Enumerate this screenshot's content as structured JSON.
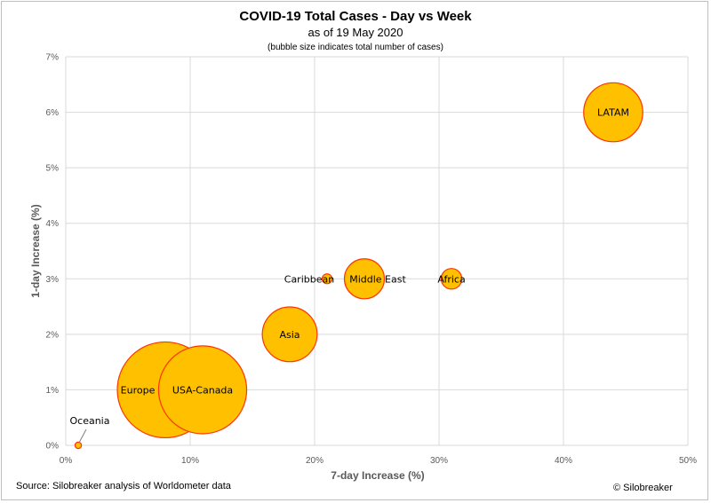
{
  "header": {
    "title": "COVID-19 Total Cases - Day vs Week",
    "subtitle": "as of 19 May 2020",
    "note": "(bubble size indicates total number of cases)"
  },
  "footer": {
    "source": "Source: Silobreaker analysis of Worldometer data",
    "copyright": "© Silobreaker"
  },
  "colors": {
    "bubble_fill": "#ffc000",
    "bubble_stroke": "#ff3300",
    "grid": "#d9d9d9"
  },
  "chart_data": {
    "type": "scatter",
    "subtype": "bubble",
    "title": "COVID-19 Total Cases - Day vs Week",
    "subtitle": "as of 19 May 2020",
    "xlabel": "7-day Increase (%)",
    "ylabel": "1-day Increase (%)",
    "xlim": [
      0,
      50
    ],
    "ylim": [
      0,
      7
    ],
    "xticks": [
      "0%",
      "10%",
      "20%",
      "30%",
      "40%",
      "50%"
    ],
    "yticks": [
      "0%",
      "1%",
      "2%",
      "3%",
      "4%",
      "5%",
      "6%",
      "7%"
    ],
    "grid": true,
    "points": [
      {
        "name": "Oceania",
        "x": 1,
        "y": 0,
        "size": 8500
      },
      {
        "name": "Europe",
        "x": 8,
        "y": 1,
        "size": 1900000
      },
      {
        "name": "USA-Canada",
        "x": 11,
        "y": 1,
        "size": 1600000
      },
      {
        "name": "Asia",
        "x": 18,
        "y": 2,
        "size": 620000
      },
      {
        "name": "Caribbean",
        "x": 21,
        "y": 3,
        "size": 20000
      },
      {
        "name": "Middle East",
        "x": 24,
        "y": 3,
        "size": 330000
      },
      {
        "name": "Africa",
        "x": 31,
        "y": 3,
        "size": 88000
      },
      {
        "name": "LATAM",
        "x": 44,
        "y": 6,
        "size": 720000
      }
    ]
  }
}
